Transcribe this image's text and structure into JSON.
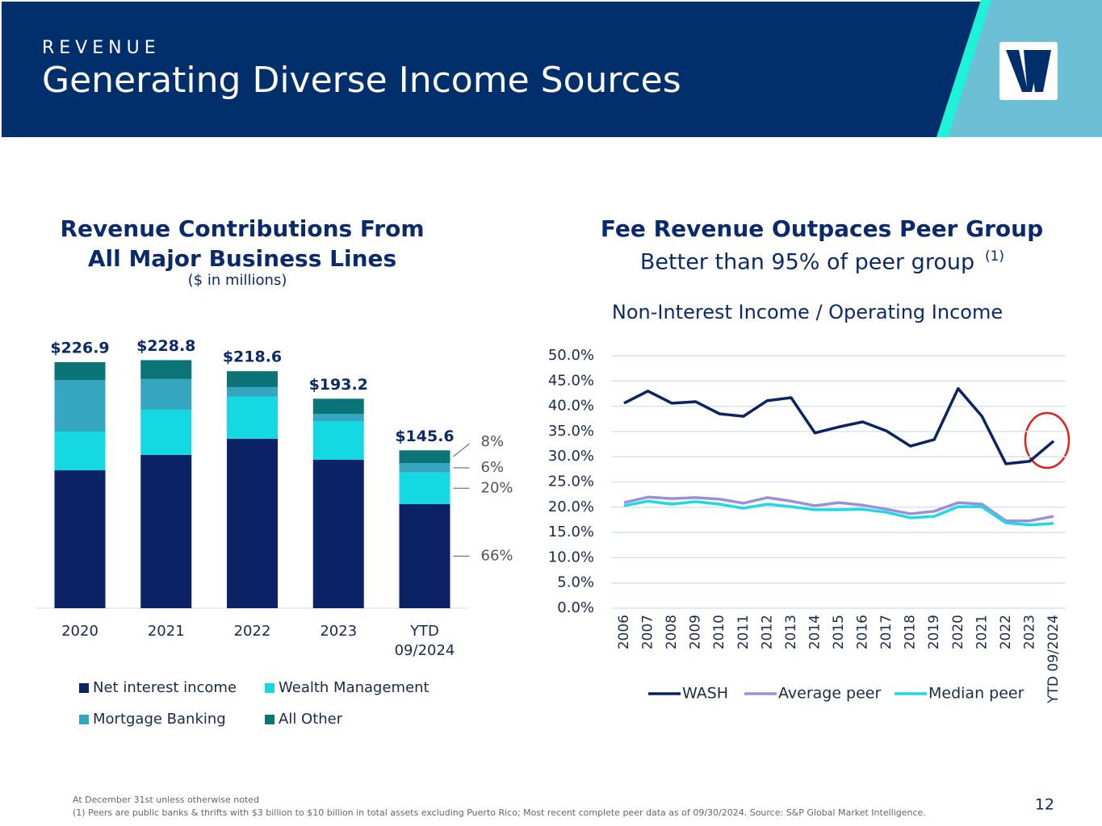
{
  "header": {
    "kicker": "REVENUE",
    "title": "Generating Diverse Income Sources"
  },
  "footer": {
    "note": "At December 31st unless otherwise noted",
    "source": "(1) Peers are public banks & thrifts with $3 billion to $10 billion in total assets excluding Puerto Rico; Most recent complete peer data as of 09/30/2024. Source: S&P Global Market Intelligence.",
    "page": "12"
  },
  "chart_data": [
    {
      "type": "stacked_bar",
      "title": "Revenue Contributions From",
      "title_line2": "All Major Business Lines",
      "subtitle": "($ in millions)",
      "categories": [
        "2020",
        "2021",
        "2022",
        "2023",
        "YTD 09/2024"
      ],
      "series": [
        {
          "name": "Net interest income",
          "color": "#0b2265",
          "values": [
            127.2,
            141.4,
            156.3,
            136.9,
            96.1
          ]
        },
        {
          "name": "Wealth Management",
          "color": "#14d9e3",
          "values": [
            35.7,
            41.7,
            38.7,
            35.7,
            29.1
          ]
        },
        {
          "name": "Mortgage Banking",
          "color": "#35a6bf",
          "values": [
            47.6,
            28.3,
            8.9,
            6.7,
            8.7
          ]
        },
        {
          "name": "All Other",
          "color": "#0b7477",
          "values": [
            16.4,
            17.4,
            14.7,
            13.9,
            11.7
          ]
        }
      ],
      "totals": [
        226.9,
        228.8,
        218.6,
        193.2,
        145.6
      ],
      "total_labels": [
        "$226.9",
        "$228.8",
        "$218.6",
        "$193.2",
        "$145.6"
      ],
      "ytd_share_labels": [
        "66%",
        "20%",
        "6%",
        "8%"
      ],
      "ylim": [
        0,
        230
      ]
    },
    {
      "type": "line",
      "title": "Fee Revenue Outpaces Peer Group",
      "subtitle": "Better than 95% of peer group",
      "subtitle_note": "(1)",
      "axis_title": "Non-Interest Income / Operating Income",
      "categories": [
        "2006",
        "2007",
        "2008",
        "2009",
        "2010",
        "2011",
        "2012",
        "2013",
        "2014",
        "2015",
        "2016",
        "2017",
        "2018",
        "2019",
        "2020",
        "2021",
        "2022",
        "2023",
        "YTD 09/2024"
      ],
      "series": [
        {
          "name": "WASH",
          "color": "#0b2265",
          "values": [
            40.6,
            43.0,
            40.6,
            40.9,
            38.5,
            38.0,
            41.1,
            41.7,
            34.7,
            35.9,
            36.9,
            35.1,
            32.1,
            33.4,
            43.5,
            38.0,
            28.6,
            29.1,
            33.1
          ]
        },
        {
          "name": "Average peer",
          "color": "#9b8fd8",
          "values": [
            20.9,
            22.0,
            21.7,
            21.9,
            21.6,
            20.8,
            21.9,
            21.2,
            20.3,
            20.9,
            20.4,
            19.6,
            18.7,
            19.2,
            20.9,
            20.6,
            17.3,
            17.3,
            18.2
          ]
        },
        {
          "name": "Median peer",
          "color": "#1ed8e8",
          "values": [
            20.3,
            21.2,
            20.6,
            21.1,
            20.6,
            19.8,
            20.6,
            20.1,
            19.5,
            19.5,
            19.6,
            19.0,
            17.9,
            18.2,
            20.1,
            20.1,
            16.9,
            16.5,
            16.8
          ]
        }
      ],
      "ylim": [
        0,
        50
      ],
      "yticks": [
        {
          "value": 0,
          "label": "0.0%"
        },
        {
          "value": 5,
          "label": "5.0%"
        },
        {
          "value": 10,
          "label": "10.0%"
        },
        {
          "value": 15,
          "label": "15.0%"
        },
        {
          "value": 20,
          "label": "20.0%"
        },
        {
          "value": 25,
          "label": "25.0%"
        },
        {
          "value": 30,
          "label": "30.0%"
        },
        {
          "value": 35,
          "label": "35.0%"
        },
        {
          "value": 40,
          "label": "40.0%"
        },
        {
          "value": 45,
          "label": "45.0%"
        },
        {
          "value": 50,
          "label": "50.0%"
        }
      ],
      "grid": true,
      "legend": "bottom"
    }
  ]
}
